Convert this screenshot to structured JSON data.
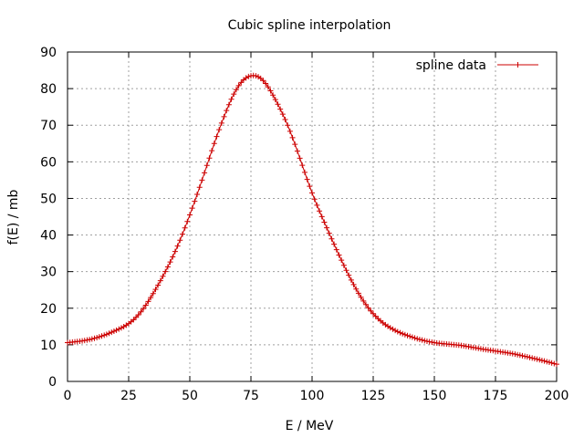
{
  "chart_data": {
    "type": "line",
    "title": "Cubic spline interpolation",
    "xlabel": "E / MeV",
    "ylabel": "f(E) / mb",
    "xlim": [
      0,
      200
    ],
    "ylim": [
      0,
      90
    ],
    "xticks": [
      0,
      25,
      50,
      75,
      100,
      125,
      150,
      175,
      200
    ],
    "yticks": [
      0,
      10,
      20,
      30,
      40,
      50,
      60,
      70,
      80,
      90
    ],
    "grid": true,
    "legend_position": "top-right",
    "series": [
      {
        "name": "spline data",
        "color": "#cc0000",
        "marker": "plus",
        "knots": [
          [
            0,
            10.6
          ],
          [
            10,
            11.6
          ],
          [
            20,
            14.0
          ],
          [
            25,
            15.8
          ],
          [
            30,
            19.0
          ],
          [
            35,
            24.0
          ],
          [
            40,
            30.0
          ],
          [
            45,
            37.0
          ],
          [
            50,
            45.5
          ],
          [
            55,
            55.0
          ],
          [
            60,
            65.0
          ],
          [
            65,
            74.0
          ],
          [
            70,
            80.8
          ],
          [
            75,
            83.5
          ],
          [
            80,
            82.2
          ],
          [
            85,
            77.0
          ],
          [
            90,
            70.0
          ],
          [
            95,
            61.0
          ],
          [
            100,
            51.5
          ],
          [
            105,
            43.5
          ],
          [
            110,
            36.0
          ],
          [
            115,
            29.0
          ],
          [
            120,
            23.0
          ],
          [
            125,
            18.5
          ],
          [
            130,
            15.5
          ],
          [
            135,
            13.6
          ],
          [
            140,
            12.3
          ],
          [
            145,
            11.3
          ],
          [
            150,
            10.6
          ],
          [
            160,
            9.9
          ],
          [
            170,
            8.8
          ],
          [
            180,
            7.8
          ],
          [
            190,
            6.4
          ],
          [
            200,
            4.7
          ]
        ]
      }
    ]
  }
}
